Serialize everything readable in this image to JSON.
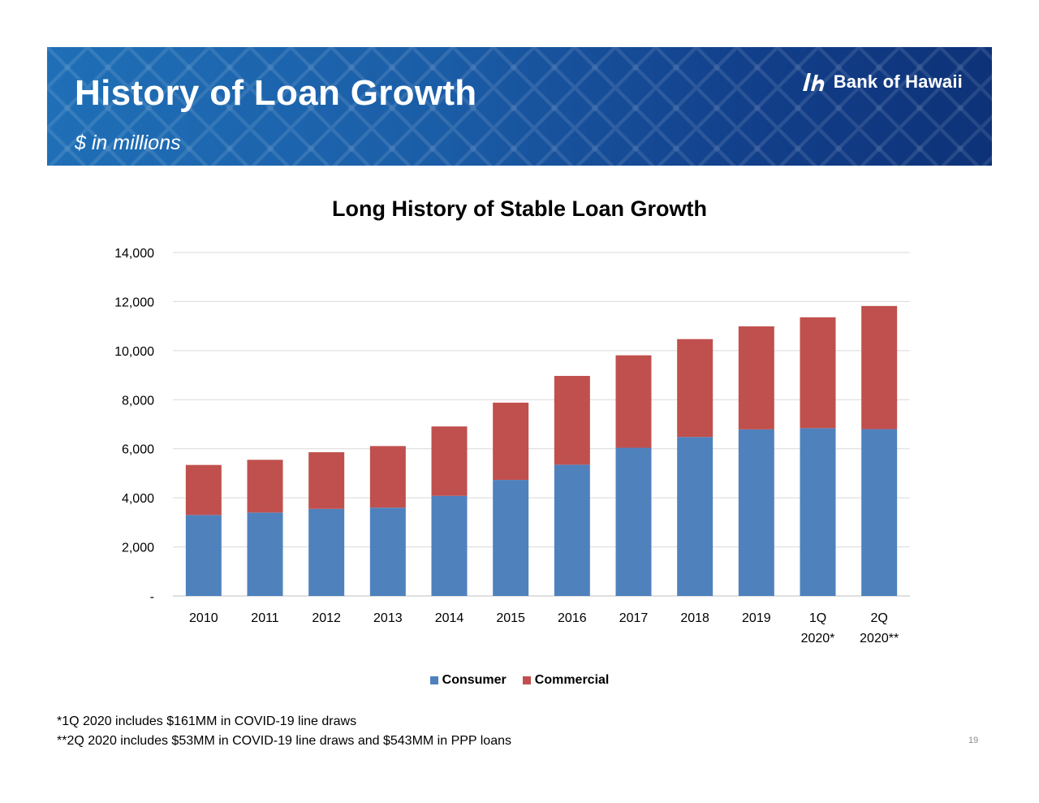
{
  "header": {
    "title": "History of Loan Growth",
    "subtitle": "$ in millions",
    "logo_text": "Bank of Hawaii"
  },
  "chart_data": {
    "type": "bar",
    "stacked": true,
    "title": "Long History of Stable Loan Growth",
    "categories": [
      [
        "2010"
      ],
      [
        "2011"
      ],
      [
        "2012"
      ],
      [
        "2013"
      ],
      [
        "2014"
      ],
      [
        "2015"
      ],
      [
        "2016"
      ],
      [
        "2017"
      ],
      [
        "2018"
      ],
      [
        "2019"
      ],
      [
        "1Q",
        "2020*"
      ],
      [
        "2Q",
        "2020**"
      ]
    ],
    "series": [
      {
        "name": "Consumer",
        "color": "#4f81bd",
        "values": [
          3300,
          3400,
          3550,
          3600,
          4080,
          4730,
          5350,
          6040,
          6480,
          6790,
          6840,
          6800
        ]
      },
      {
        "name": "Commercial",
        "color": "#c0504d",
        "values": [
          2040,
          2150,
          2310,
          2510,
          2830,
          3150,
          3620,
          3770,
          3990,
          4200,
          4520,
          5020
        ]
      }
    ],
    "ylim": [
      0,
      14000
    ],
    "yticks": [
      0,
      2000,
      4000,
      6000,
      8000,
      10000,
      12000,
      14000
    ],
    "ytick_labels": [
      "-",
      "2,000",
      "4,000",
      "6,000",
      "8,000",
      "10,000",
      "12,000",
      "14,000"
    ],
    "grid": true,
    "legend_position": "bottom-center"
  },
  "footnotes": [
    "*1Q 2020 includes $161MM in COVID-19 line draws",
    "**2Q 2020 includes $53MM in COVID-19 line draws and $543MM in PPP loans"
  ],
  "page_number": "19"
}
